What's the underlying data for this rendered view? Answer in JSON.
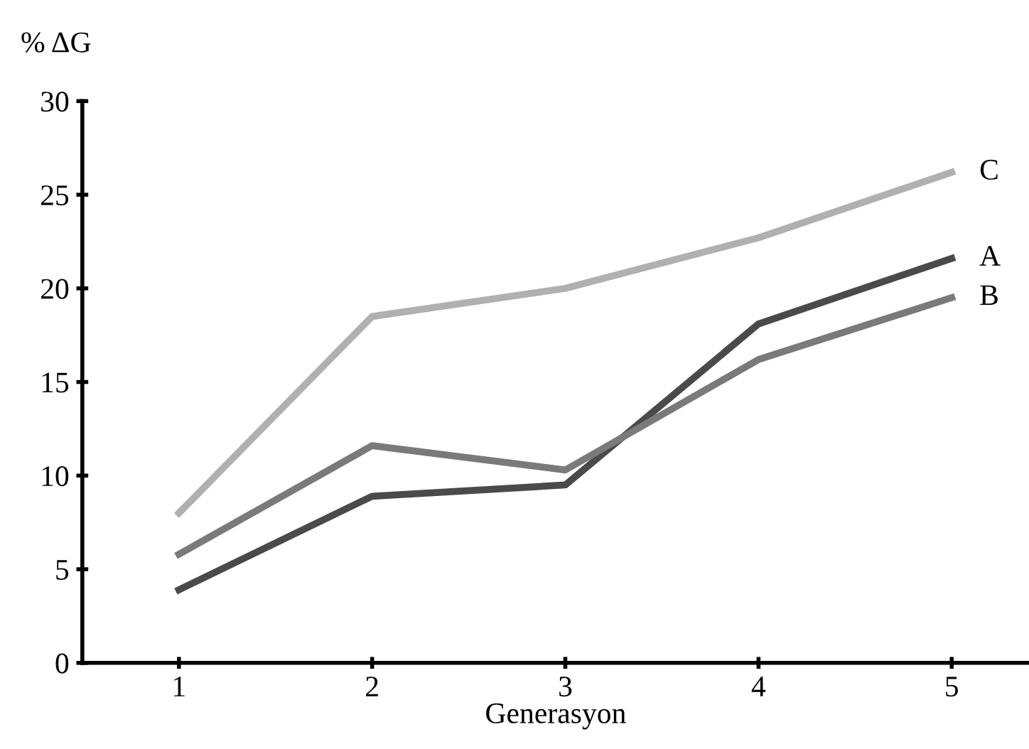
{
  "chart_data": {
    "type": "line",
    "xlabel": "Generasyon",
    "ylabel": "% ΔG",
    "x": [
      1,
      2,
      3,
      4,
      5
    ],
    "xlim": [
      0.5,
      5.4
    ],
    "xticks": [
      1,
      2,
      3,
      4,
      5
    ],
    "ylim": [
      0,
      30
    ],
    "yticks": [
      0,
      5,
      10,
      15,
      20,
      25,
      30
    ],
    "grid": false,
    "legend": false,
    "marker": "none",
    "line_style": "solid",
    "series": [
      {
        "name": "A",
        "color": "#4a4a4a",
        "values": [
          3.9,
          8.9,
          9.5,
          18.1,
          21.6
        ]
      },
      {
        "name": "B",
        "color": "#7a7a7a",
        "values": [
          5.8,
          11.6,
          10.3,
          16.2,
          19.5
        ]
      },
      {
        "name": "C",
        "color": "#b0b0b0",
        "values": [
          8.0,
          18.5,
          20.0,
          22.7,
          26.2
        ]
      }
    ]
  }
}
